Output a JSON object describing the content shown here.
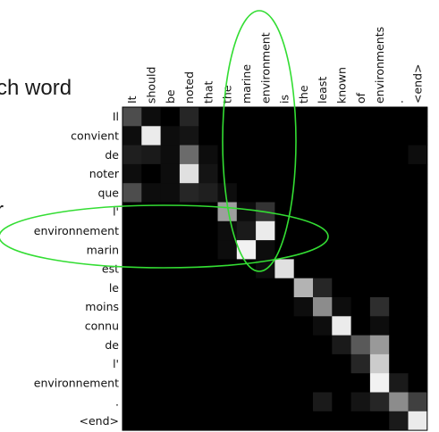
{
  "slide_fragments": [
    "ch word",
    "r"
  ],
  "chart_data": {
    "type": "heatmap",
    "colormap": "grayscale (black = 0, white = 1)",
    "source_words": [
      "It",
      "should",
      "be",
      "noted",
      "that",
      "the",
      "marine",
      "environment",
      "is",
      "the",
      "least",
      "known",
      "of",
      "environments",
      ".",
      "<end>"
    ],
    "target_words": [
      "Il",
      "convient",
      "de",
      "noter",
      "que",
      "l'",
      "environnement",
      "marin",
      "est",
      "le",
      "moins",
      "connu",
      "de",
      "l'",
      "environnement",
      ".",
      "<end>"
    ],
    "matrix": [
      [
        0.3,
        0.05,
        0.0,
        0.15,
        0.0,
        0.0,
        0.0,
        0.0,
        0.0,
        0.0,
        0.0,
        0.0,
        0.0,
        0.0,
        0.0,
        0.0
      ],
      [
        0.05,
        0.92,
        0.05,
        0.08,
        0.0,
        0.0,
        0.0,
        0.0,
        0.0,
        0.0,
        0.0,
        0.0,
        0.0,
        0.0,
        0.0,
        0.0
      ],
      [
        0.12,
        0.1,
        0.05,
        0.42,
        0.05,
        0.0,
        0.0,
        0.0,
        0.0,
        0.0,
        0.0,
        0.0,
        0.0,
        0.0,
        0.0,
        0.05
      ],
      [
        0.05,
        0.0,
        0.05,
        0.88,
        0.08,
        0.0,
        0.0,
        0.0,
        0.0,
        0.0,
        0.0,
        0.0,
        0.0,
        0.0,
        0.0,
        0.0
      ],
      [
        0.3,
        0.05,
        0.05,
        0.15,
        0.12,
        0.05,
        0.0,
        0.0,
        0.0,
        0.0,
        0.0,
        0.0,
        0.0,
        0.0,
        0.0,
        0.0
      ],
      [
        0.0,
        0.0,
        0.0,
        0.0,
        0.0,
        0.62,
        0.05,
        0.2,
        0.0,
        0.0,
        0.0,
        0.0,
        0.0,
        0.0,
        0.0,
        0.0
      ],
      [
        0.0,
        0.0,
        0.0,
        0.0,
        0.0,
        0.05,
        0.1,
        0.92,
        0.0,
        0.0,
        0.0,
        0.0,
        0.0,
        0.0,
        0.0,
        0.0
      ],
      [
        0.0,
        0.0,
        0.0,
        0.0,
        0.0,
        0.05,
        0.95,
        0.05,
        0.0,
        0.0,
        0.0,
        0.0,
        0.0,
        0.0,
        0.0,
        0.0
      ],
      [
        0.0,
        0.0,
        0.0,
        0.0,
        0.0,
        0.0,
        0.0,
        0.05,
        0.88,
        0.0,
        0.0,
        0.0,
        0.0,
        0.0,
        0.0,
        0.0
      ],
      [
        0.0,
        0.0,
        0.0,
        0.0,
        0.0,
        0.0,
        0.0,
        0.0,
        0.0,
        0.7,
        0.15,
        0.0,
        0.0,
        0.0,
        0.0,
        0.0
      ],
      [
        0.0,
        0.0,
        0.0,
        0.0,
        0.0,
        0.0,
        0.0,
        0.0,
        0.0,
        0.05,
        0.55,
        0.05,
        0.0,
        0.18,
        0.0,
        0.0
      ],
      [
        0.0,
        0.0,
        0.0,
        0.0,
        0.0,
        0.0,
        0.0,
        0.0,
        0.0,
        0.0,
        0.05,
        0.92,
        0.0,
        0.05,
        0.0,
        0.0
      ],
      [
        0.0,
        0.0,
        0.0,
        0.0,
        0.0,
        0.0,
        0.0,
        0.0,
        0.0,
        0.0,
        0.0,
        0.1,
        0.35,
        0.6,
        0.0,
        0.0
      ],
      [
        0.0,
        0.0,
        0.0,
        0.0,
        0.0,
        0.0,
        0.0,
        0.0,
        0.0,
        0.0,
        0.0,
        0.0,
        0.15,
        0.8,
        0.0,
        0.0
      ],
      [
        0.0,
        0.0,
        0.0,
        0.0,
        0.0,
        0.0,
        0.0,
        0.0,
        0.0,
        0.0,
        0.0,
        0.0,
        0.0,
        0.95,
        0.1,
        0.0
      ],
      [
        0.0,
        0.0,
        0.0,
        0.0,
        0.0,
        0.0,
        0.0,
        0.0,
        0.0,
        0.0,
        0.1,
        0.0,
        0.08,
        0.15,
        0.55,
        0.25
      ],
      [
        0.0,
        0.0,
        0.0,
        0.0,
        0.0,
        0.0,
        0.0,
        0.0,
        0.0,
        0.0,
        0.0,
        0.0,
        0.0,
        0.0,
        0.1,
        0.92
      ]
    ],
    "highlight_color": "#33dd33"
  }
}
